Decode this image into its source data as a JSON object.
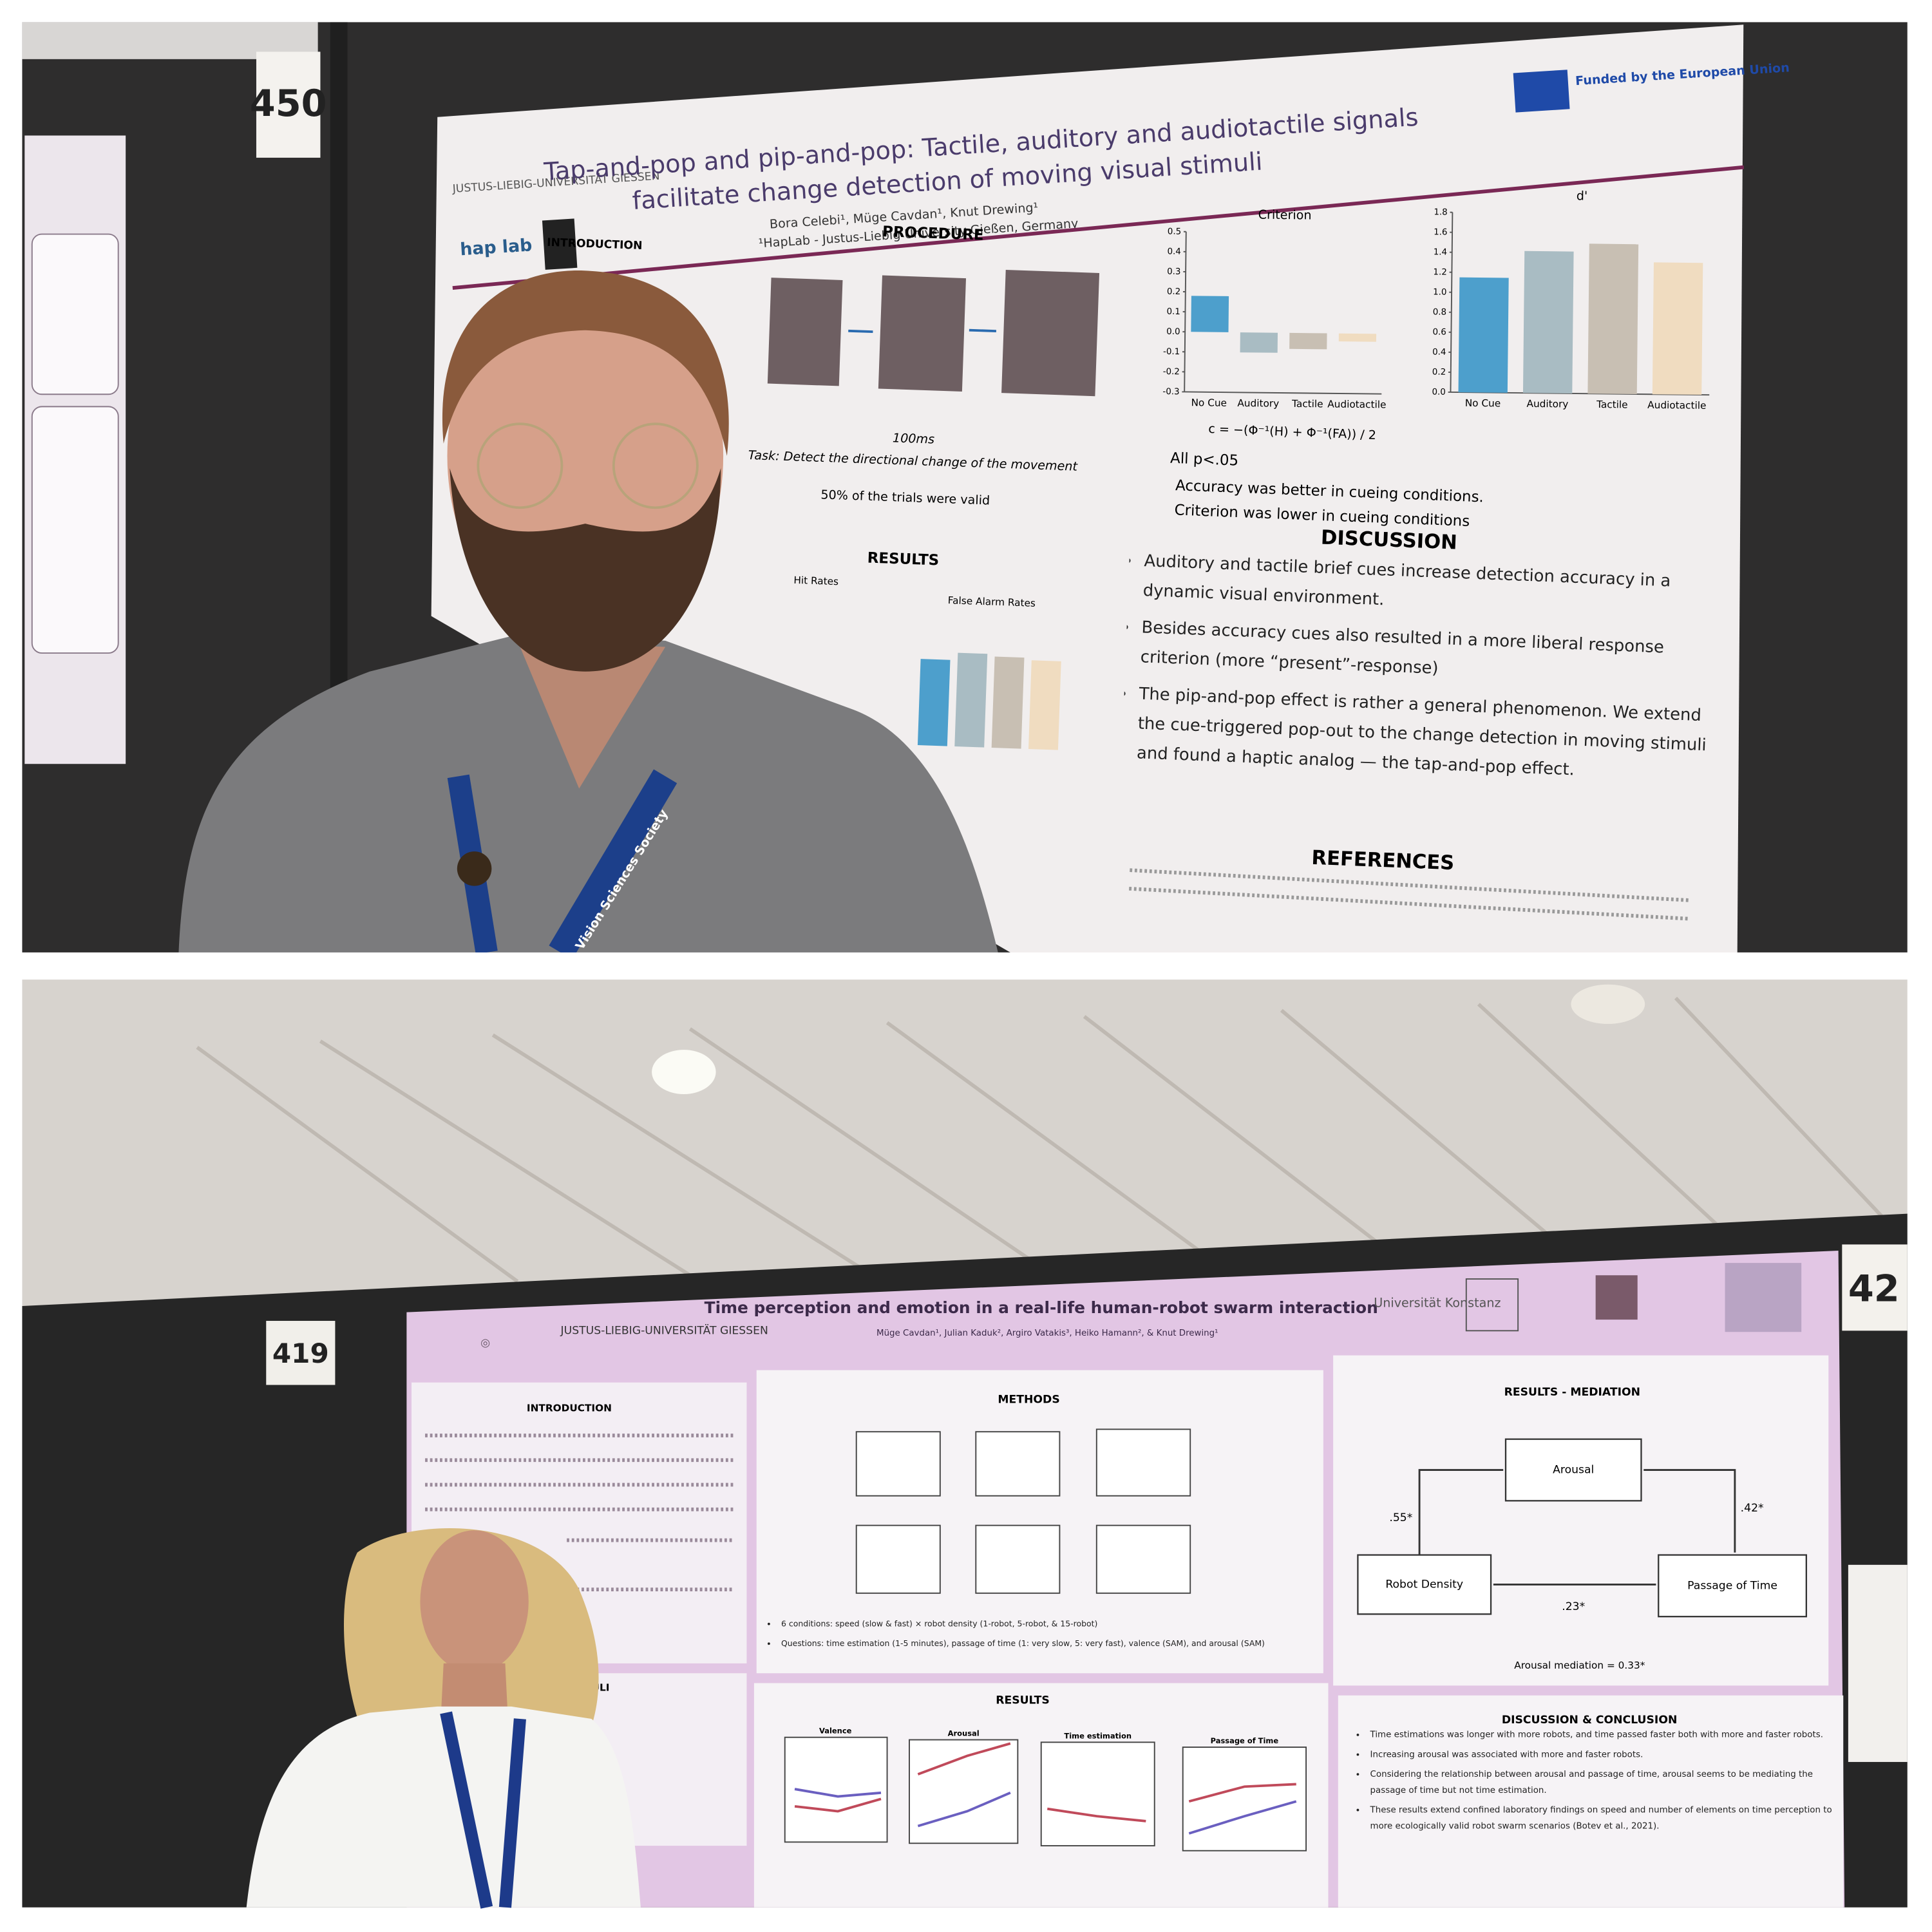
{
  "top_photo": {
    "board_number": "450",
    "lanyard": "Vision Sciences Society",
    "poster": {
      "university": "JUSTUS-LIEBIG-UNIVERSITÄT GIESSEN",
      "lab": "hap lab",
      "title": [
        "Tap-and-pop and pip-and-pop: Tactile, auditory and audiotactile signals",
        "facilitate change detection of moving visual stimuli"
      ],
      "authors": "Bora Celebi¹, Müge Cavdan¹, Knut Drewing¹",
      "affiliation": "¹HapLab - Justus-Liebig University Gießen, Germany",
      "funding": "Funded by the European Union",
      "introduction": "INTRODUCTION",
      "procedure": {
        "heading": "PROCEDURE",
        "timing": "100ms",
        "task": "Task: Detect the directional change of the movement",
        "validity": "50% of the trials were valid"
      },
      "results": {
        "heading": "RESULTS",
        "hit_rates": "Hit Rates",
        "false_alarm_rates": "False Alarm Rates"
      },
      "charts": [
        {
          "type": "bar",
          "title": "Criterion",
          "categories": [
            "No Cue",
            "Auditory",
            "Tactile",
            "Audiotactile"
          ],
          "values": [
            0.18,
            -0.1,
            -0.08,
            -0.04
          ],
          "colors": [
            "#4d9fcc",
            "#a9bcc3",
            "#c8bfb3",
            "#f0dcc0"
          ],
          "ylim": [
            -0.3,
            0.5
          ],
          "yticks": [
            -0.3,
            -0.2,
            -0.1,
            {
              "value": 0,
              "label": "0.0"
            },
            0.1,
            0.2,
            0.3,
            0.4,
            0.5
          ]
        },
        {
          "type": "bar",
          "title": "d'",
          "categories": [
            "No Cue",
            "Auditory",
            "Tactile",
            "Audiotactile"
          ],
          "values": [
            1.15,
            1.42,
            1.5,
            1.32
          ],
          "colors": [
            "#4d9fcc",
            "#a9bcc3",
            "#c8bfb3",
            "#f0dcc0"
          ],
          "ylim": [
            0,
            1.8
          ],
          "yticks": [
            {
              "value": 0,
              "label": "0.0"
            },
            0.2,
            0.4,
            0.6,
            0.8,
            {
              "value": 1,
              "label": "1.0"
            },
            1.2,
            1.4,
            1.6,
            1.8
          ]
        }
      ],
      "formula": "c = −(Φ⁻¹(H) + Φ⁻¹(FA)) / 2",
      "stats": [
        "All p<.05",
        "Accuracy was better in cueing conditions.",
        "Criterion was lower in cueing conditions"
      ],
      "discussion": {
        "heading": "DISCUSSION",
        "bullets": [
          "Auditory and tactile brief cues increase detection accuracy in a dynamic visual environment.",
          "Besides accuracy cues also resulted in a more liberal response criterion (more “present”-response)",
          "The pip-and-pop effect is rather a general phenomenon. We extend the cue-triggered pop-out to the change detection in moving stimuli and found a haptic analog — the tap-and-pop effect."
        ]
      },
      "references": {
        "heading": "REFERENCES"
      }
    }
  },
  "bottom_photo": {
    "board_number": "419",
    "next_board": "42",
    "poster": {
      "university": "JUSTUS-LIEBIG-UNIVERSITÄT GIESSEN",
      "konstanz": "Universität Konstanz",
      "title": "Time perception and emotion in a real-life human-robot swarm interaction",
      "authors": "Müge Cavdan¹, Julian Kaduk², Argiro Vatakis³, Heiko Hamann², & Knut Drewing¹",
      "introduction": "INTRODUCTION",
      "stimuli": "STIMULI",
      "methods": {
        "heading": "METHODS",
        "bullets": [
          "6 conditions: speed (slow & fast) × robot density (1-robot, 5-robot, & 15-robot)",
          "Questions: time estimation (1-5 minutes), passage of time (1: very slow, 5: very fast), valence (SAM), and arousal (SAM)"
        ]
      },
      "mediation": {
        "heading": "RESULTS - MEDIATION",
        "nodes": [
          "Arousal",
          "Robot Density",
          "Passage of Time"
        ],
        "edges": [
          ".55*",
          ".42*",
          ".23*"
        ],
        "note": "Arousal mediation = 0.33*"
      },
      "results": {
        "heading": "RESULTS",
        "panels": [
          "Valence",
          "Arousal",
          "Time estimation",
          "Passage of Time"
        ]
      },
      "discussion": {
        "heading": "DISCUSSION & CONCLUSION",
        "bullets": [
          "Time estimations was longer with more robots, and time passed faster both with more and faster robots.",
          "Increasing arousal was associated with more and faster robots.",
          "Considering the relationship between arousal and passage of time, arousal seems to be mediating the passage of time but not time estimation.",
          "These results extend confined laboratory findings on speed and number of elements on time perception to more ecologically valid robot swarm scenarios (Botev et al., 2021)."
        ]
      }
    }
  }
}
